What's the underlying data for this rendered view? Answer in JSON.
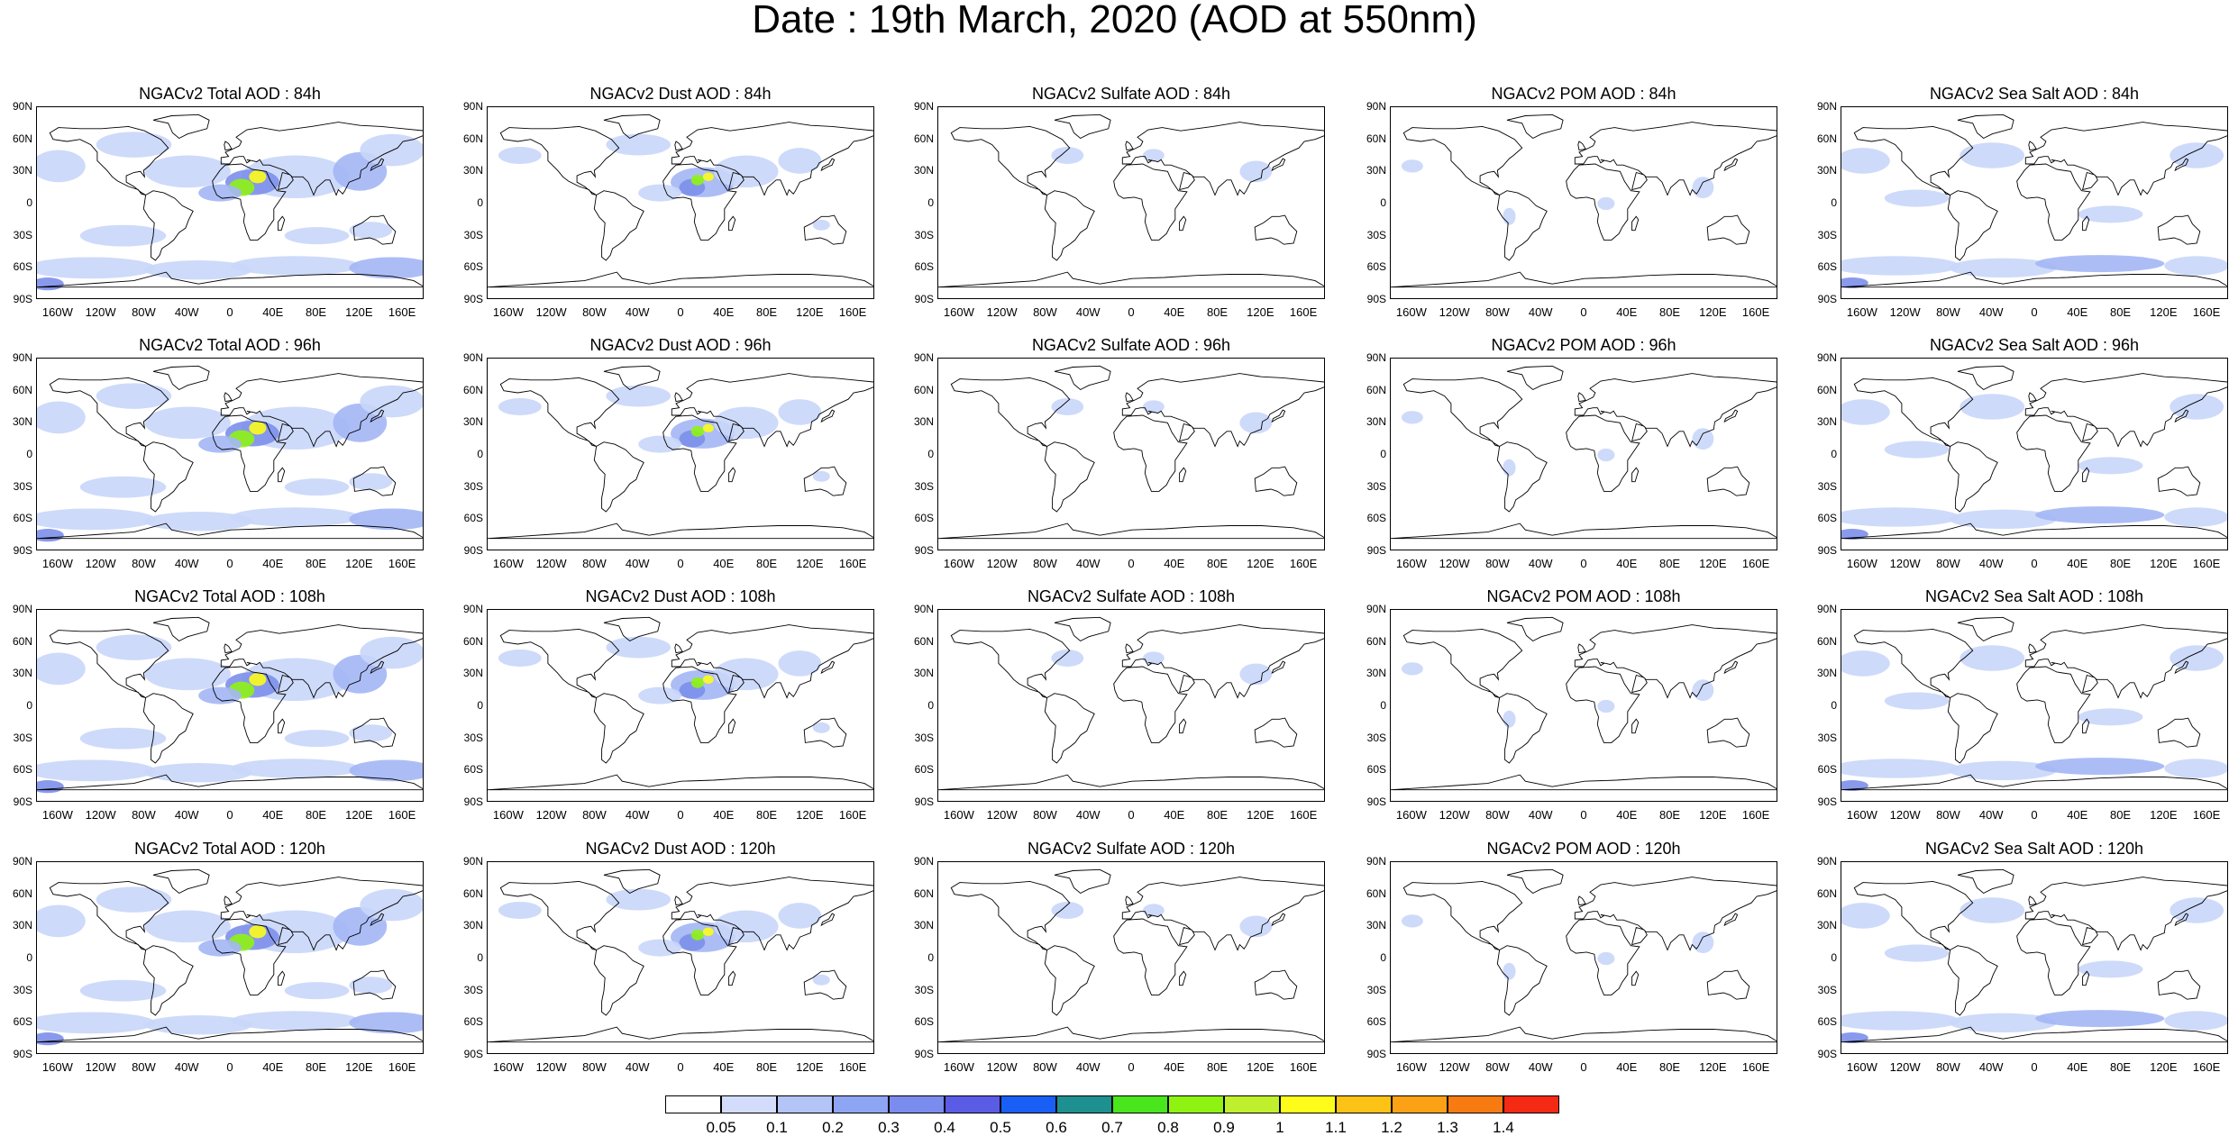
{
  "title": "Date : 19th March, 2020 (AOD at 550nm)",
  "lat_labels": [
    "90N",
    "60N",
    "30N",
    "0",
    "30S",
    "60S",
    "90S"
  ],
  "lon_labels": [
    "160W",
    "120W",
    "80W",
    "40W",
    "0",
    "40E",
    "80E",
    "120E",
    "160E"
  ],
  "panels": [
    [
      {
        "title": "NGACv2 Total AOD : 84h",
        "species": "total"
      },
      {
        "title": "NGACv2 Dust AOD : 84h",
        "species": "dust"
      },
      {
        "title": "NGACv2 Sulfate AOD : 84h",
        "species": "sulfate"
      },
      {
        "title": "NGACv2 POM AOD : 84h",
        "species": "pom"
      },
      {
        "title": "NGACv2 Sea Salt AOD : 84h",
        "species": "seasalt"
      }
    ],
    [
      {
        "title": "NGACv2 Total AOD : 96h",
        "species": "total"
      },
      {
        "title": "NGACv2 Dust AOD : 96h",
        "species": "dust"
      },
      {
        "title": "NGACv2 Sulfate AOD : 96h",
        "species": "sulfate"
      },
      {
        "title": "NGACv2 POM AOD : 96h",
        "species": "pom"
      },
      {
        "title": "NGACv2 Sea Salt AOD : 96h",
        "species": "seasalt"
      }
    ],
    [
      {
        "title": "NGACv2 Total AOD : 108h",
        "species": "total"
      },
      {
        "title": "NGACv2 Dust AOD : 108h",
        "species": "dust"
      },
      {
        "title": "NGACv2 Sulfate AOD : 108h",
        "species": "sulfate"
      },
      {
        "title": "NGACv2 POM AOD : 108h",
        "species": "pom"
      },
      {
        "title": "NGACv2 Sea Salt AOD : 108h",
        "species": "seasalt"
      }
    ],
    [
      {
        "title": "NGACv2 Total AOD : 120h",
        "species": "total"
      },
      {
        "title": "NGACv2 Dust AOD : 120h",
        "species": "dust"
      },
      {
        "title": "NGACv2 Sulfate AOD : 120h",
        "species": "sulfate"
      },
      {
        "title": "NGACv2 POM AOD : 120h",
        "species": "pom"
      },
      {
        "title": "NGACv2 Sea Salt  AOD : 120h",
        "species": "seasalt"
      }
    ]
  ],
  "colorbar": {
    "colors": [
      "#ffffff",
      "#d3ddfb",
      "#b3c4f7",
      "#8ea5f3",
      "#7b8cef",
      "#5b5ce6",
      "#1a5ff5",
      "#1f9090",
      "#49e51d",
      "#8ff312",
      "#c0ef2e",
      "#fdfc1a",
      "#fcc216",
      "#fca115",
      "#f87b12",
      "#f52a14"
    ],
    "labels": [
      "0.05",
      "0.1",
      "0.2",
      "0.3",
      "0.4",
      "0.5",
      "0.6",
      "0.7",
      "0.8",
      "0.9",
      "1",
      "1.1",
      "1.2",
      "1.3",
      "1.4"
    ]
  },
  "colors": {
    "land_outline": "#000000",
    "light_blue": "#c9d6fa",
    "mid_blue": "#a3b6f5",
    "dark_blue": "#7c8feb",
    "dust_yellow": "#fdfc1a",
    "dust_green": "#8ff312"
  }
}
